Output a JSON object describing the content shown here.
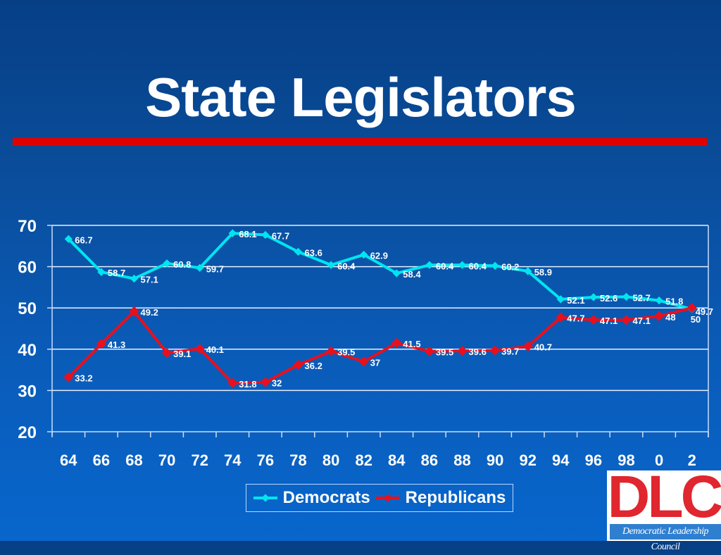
{
  "slide": {
    "title": "State Legislators",
    "accent_rule_color": "#e00000"
  },
  "legend": {
    "items": [
      {
        "label": "Democrats",
        "color": "#00e5f0"
      },
      {
        "label": "Republicans",
        "color": "#e8101c"
      }
    ]
  },
  "logo": {
    "letters": "DLC",
    "subtitle": "Democratic Leadership Council"
  },
  "chart_data": {
    "type": "line",
    "title": "State Legislators",
    "xlabel": "",
    "ylabel": "",
    "categories": [
      "64",
      "66",
      "68",
      "70",
      "72",
      "74",
      "76",
      "78",
      "80",
      "82",
      "84",
      "86",
      "88",
      "90",
      "92",
      "94",
      "96",
      "98",
      "0",
      "2"
    ],
    "ylim": [
      20,
      70
    ],
    "yticks": [
      20,
      30,
      40,
      50,
      60,
      70
    ],
    "grid": true,
    "legend_position": "bottom",
    "series": [
      {
        "name": "Democrats",
        "color": "#00e5f0",
        "values": [
          66.7,
          58.7,
          57.1,
          60.8,
          59.7,
          68.1,
          67.7,
          63.6,
          60.4,
          62.9,
          58.4,
          60.4,
          60.4,
          60.2,
          58.9,
          52.1,
          52.6,
          52.7,
          51.8,
          49.7
        ],
        "labels": [
          "66.7",
          "58.7",
          "57.1",
          "60.8",
          "59.7",
          "68.1",
          "67.7",
          "63.6",
          "60.4",
          "62.9",
          "58.4",
          "60.4",
          "60.4",
          "60.2",
          "58.9",
          "52.1",
          "52.6",
          "52.7",
          "51.8",
          "49.7"
        ]
      },
      {
        "name": "Republicans",
        "color": "#e8101c",
        "values": [
          33.2,
          41.3,
          49.2,
          39.1,
          40.1,
          31.8,
          32,
          36.2,
          39.5,
          37,
          41.5,
          39.5,
          39.6,
          39.7,
          40.7,
          47.7,
          47.1,
          47.1,
          48,
          50
        ],
        "labels": [
          "33.2",
          "41.3",
          "49.2",
          "39.1",
          "40.1",
          "31.8",
          "32",
          "36.2",
          "39.5",
          "37",
          "41.5",
          "39.5",
          "39.6",
          "39.7",
          "40.7",
          "47.7",
          "47.1",
          "47.1",
          "48",
          "50"
        ]
      }
    ]
  }
}
